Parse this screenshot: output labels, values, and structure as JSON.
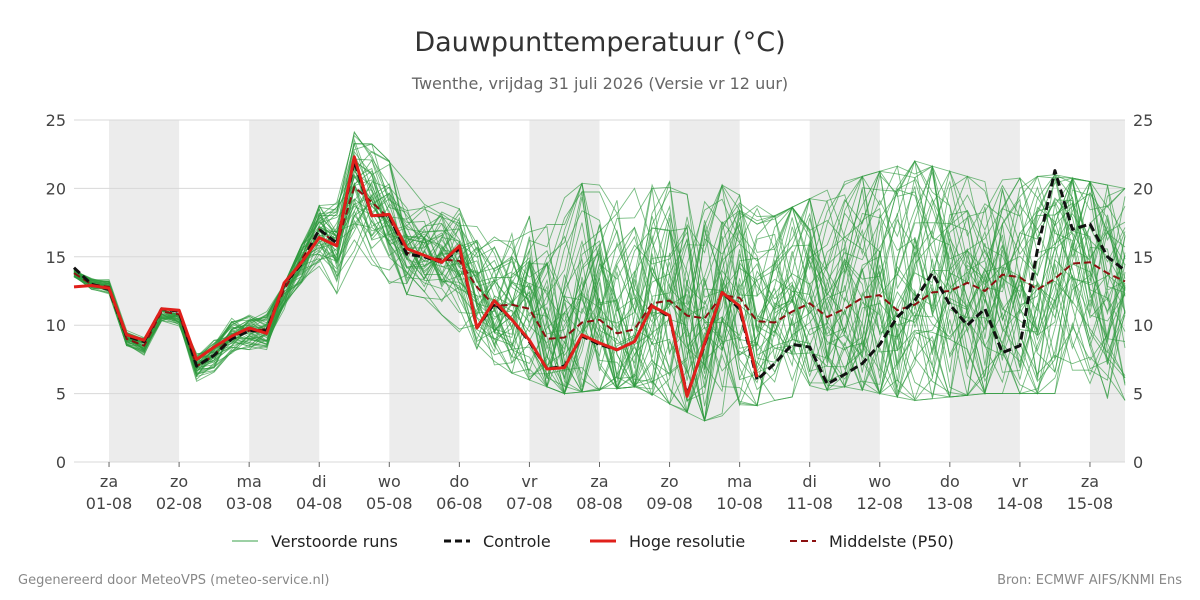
{
  "chart_data": {
    "type": "line",
    "title": "Dauwpunttemperatuur (°C)",
    "subtitle": "Twenthe, vrijdag 31 juli 2026 (Versie vr 12 uur)",
    "ylim": [
      0,
      25
    ],
    "y_ticks": [
      0,
      5,
      10,
      15,
      20,
      25
    ],
    "x_range": [
      "2026-07-31 12:00",
      "2026-08-15 12:00"
    ],
    "date_ticks": [
      {
        "date": "2026-08-01",
        "day": "za",
        "label": "01-08"
      },
      {
        "date": "2026-08-02",
        "day": "zo",
        "label": "02-08"
      },
      {
        "date": "2026-08-03",
        "day": "ma",
        "label": "03-08"
      },
      {
        "date": "2026-08-04",
        "day": "di",
        "label": "04-08"
      },
      {
        "date": "2026-08-05",
        "day": "wo",
        "label": "05-08"
      },
      {
        "date": "2026-08-06",
        "day": "do",
        "label": "06-08"
      },
      {
        "date": "2026-08-07",
        "day": "vr",
        "label": "07-08"
      },
      {
        "date": "2026-08-08",
        "day": "za",
        "label": "08-08"
      },
      {
        "date": "2026-08-09",
        "day": "zo",
        "label": "09-08"
      },
      {
        "date": "2026-08-10",
        "day": "ma",
        "label": "10-08"
      },
      {
        "date": "2026-08-11",
        "day": "di",
        "label": "11-08"
      },
      {
        "date": "2026-08-12",
        "day": "wo",
        "label": "12-08"
      },
      {
        "date": "2026-08-13",
        "day": "do",
        "label": "13-08"
      },
      {
        "date": "2026-08-14",
        "day": "vr",
        "label": "14-08"
      },
      {
        "date": "2026-08-15",
        "day": "za",
        "label": "15-08"
      }
    ],
    "weekend_shading": [
      [
        "2026-08-01",
        "2026-08-02"
      ],
      [
        "2026-08-03",
        "2026-08-04"
      ],
      [
        "2026-08-05",
        "2026-08-06"
      ],
      [
        "2026-08-07",
        "2026-08-08"
      ],
      [
        "2026-08-09",
        "2026-08-10"
      ],
      [
        "2026-08-11",
        "2026-08-12"
      ],
      [
        "2026-08-13",
        "2026-08-14"
      ],
      [
        "2026-08-15",
        "2026-08-15 12:00"
      ]
    ],
    "grid": true,
    "legend_position": "bottom",
    "colors": {
      "ensemble": "#2e9a3e",
      "control": "#111111",
      "hires": "#e0201b",
      "median": "#8b1010",
      "weekend": "#ececec",
      "grid": "#d8d8d8"
    },
    "series": [
      {
        "name": "Controle",
        "style": "dashed",
        "points": [
          [
            "2026-07-31 12:00",
            14.2
          ],
          [
            "2026-07-31 18:00",
            13.0
          ],
          [
            "2026-08-01 00:00",
            12.6
          ],
          [
            "2026-08-01 06:00",
            9.2
          ],
          [
            "2026-08-01 12:00",
            8.8
          ],
          [
            "2026-08-01 18:00",
            11.2
          ],
          [
            "2026-08-02 00:00",
            11.0
          ],
          [
            "2026-08-02 06:00",
            7.0
          ],
          [
            "2026-08-02 12:00",
            7.8
          ],
          [
            "2026-08-02 18:00",
            9.0
          ],
          [
            "2026-08-03 00:00",
            9.6
          ],
          [
            "2026-08-03 06:00",
            9.6
          ],
          [
            "2026-08-03 12:00",
            13.0
          ],
          [
            "2026-08-03 18:00",
            14.5
          ],
          [
            "2026-08-04 00:00",
            17.0
          ],
          [
            "2026-08-04 06:00",
            16.0
          ],
          [
            "2026-08-04 12:00",
            22.0
          ],
          [
            "2026-08-04 18:00",
            18.0
          ],
          [
            "2026-08-05 00:00",
            18.0
          ],
          [
            "2026-08-05 06:00",
            15.2
          ],
          [
            "2026-08-05 12:00",
            15.0
          ],
          [
            "2026-08-05 18:00",
            14.6
          ],
          [
            "2026-08-06 00:00",
            15.6
          ],
          [
            "2026-08-06 06:00",
            9.8
          ],
          [
            "2026-08-06 12:00",
            11.6
          ],
          [
            "2026-08-06 18:00",
            10.4
          ],
          [
            "2026-08-07 00:00",
            8.8
          ],
          [
            "2026-08-07 06:00",
            6.8
          ],
          [
            "2026-08-07 12:00",
            7.0
          ],
          [
            "2026-08-07 18:00",
            9.2
          ],
          [
            "2026-08-08 00:00",
            8.6
          ],
          [
            "2026-08-08 06:00",
            8.2
          ],
          [
            "2026-08-08 12:00",
            8.8
          ],
          [
            "2026-08-08 18:00",
            11.4
          ],
          [
            "2026-08-09 00:00",
            10.6
          ],
          [
            "2026-08-09 06:00",
            4.9
          ],
          [
            "2026-08-09 12:00",
            8.6
          ],
          [
            "2026-08-09 18:00",
            12.4
          ],
          [
            "2026-08-10 00:00",
            11.2
          ],
          [
            "2026-08-10 06:00",
            6.0
          ],
          [
            "2026-08-10 12:00",
            7.2
          ],
          [
            "2026-08-10 18:00",
            8.6
          ],
          [
            "2026-08-11 00:00",
            8.4
          ],
          [
            "2026-08-11 06:00",
            5.7
          ],
          [
            "2026-08-11 12:00",
            6.4
          ],
          [
            "2026-08-11 18:00",
            7.2
          ],
          [
            "2026-08-12 00:00",
            8.6
          ],
          [
            "2026-08-12 06:00",
            10.6
          ],
          [
            "2026-08-12 12:00",
            11.8
          ],
          [
            "2026-08-12 18:00",
            13.8
          ],
          [
            "2026-08-13 00:00",
            11.5
          ],
          [
            "2026-08-13 06:00",
            10.0
          ],
          [
            "2026-08-13 12:00",
            11.2
          ],
          [
            "2026-08-13 18:00",
            8.0
          ],
          [
            "2026-08-14 00:00",
            8.5
          ],
          [
            "2026-08-14 06:00",
            15.5
          ],
          [
            "2026-08-14 12:00",
            21.3
          ],
          [
            "2026-08-14 18:00",
            17.0
          ],
          [
            "2026-08-15 00:00",
            17.4
          ],
          [
            "2026-08-15 06:00",
            15.0
          ],
          [
            "2026-08-15 12:00",
            14.0
          ]
        ]
      },
      {
        "name": "Hoge resolutie",
        "style": "solid",
        "points": [
          [
            "2026-07-31 12:00",
            12.8
          ],
          [
            "2026-07-31 18:00",
            12.9
          ],
          [
            "2026-08-01 00:00",
            12.7
          ],
          [
            "2026-08-01 06:00",
            9.3
          ],
          [
            "2026-08-01 12:00",
            8.9
          ],
          [
            "2026-08-01 18:00",
            11.2
          ],
          [
            "2026-08-02 00:00",
            11.1
          ],
          [
            "2026-08-02 06:00",
            7.5
          ],
          [
            "2026-08-02 12:00",
            8.4
          ],
          [
            "2026-08-02 18:00",
            9.2
          ],
          [
            "2026-08-03 00:00",
            9.8
          ],
          [
            "2026-08-03 06:00",
            9.4
          ],
          [
            "2026-08-03 12:00",
            13.1
          ],
          [
            "2026-08-03 18:00",
            14.6
          ],
          [
            "2026-08-04 00:00",
            16.4
          ],
          [
            "2026-08-04 06:00",
            15.8
          ],
          [
            "2026-08-04 12:00",
            22.3
          ],
          [
            "2026-08-04 18:00",
            18.0
          ],
          [
            "2026-08-05 00:00",
            18.1
          ],
          [
            "2026-08-05 06:00",
            15.6
          ],
          [
            "2026-08-05 12:00",
            15.1
          ],
          [
            "2026-08-05 18:00",
            14.6
          ],
          [
            "2026-08-06 00:00",
            15.8
          ],
          [
            "2026-08-06 06:00",
            9.8
          ],
          [
            "2026-08-06 12:00",
            11.8
          ],
          [
            "2026-08-06 18:00",
            10.4
          ],
          [
            "2026-08-07 00:00",
            8.9
          ],
          [
            "2026-08-07 06:00",
            6.8
          ],
          [
            "2026-08-07 12:00",
            6.9
          ],
          [
            "2026-08-07 18:00",
            9.3
          ],
          [
            "2026-08-08 00:00",
            8.7
          ],
          [
            "2026-08-08 06:00",
            8.2
          ],
          [
            "2026-08-08 12:00",
            8.8
          ],
          [
            "2026-08-08 18:00",
            11.4
          ],
          [
            "2026-08-09 00:00",
            10.7
          ],
          [
            "2026-08-09 06:00",
            4.8
          ],
          [
            "2026-08-09 12:00",
            8.7
          ],
          [
            "2026-08-09 18:00",
            12.4
          ],
          [
            "2026-08-10 00:00",
            11.4
          ],
          [
            "2026-08-10 06:00",
            6.2
          ]
        ]
      },
      {
        "name": "Middelste (P50)",
        "style": "dashed",
        "points": [
          [
            "2026-07-31 12:00",
            13.8
          ],
          [
            "2026-07-31 18:00",
            13.0
          ],
          [
            "2026-08-01 00:00",
            12.8
          ],
          [
            "2026-08-01 06:00",
            9.0
          ],
          [
            "2026-08-01 12:00",
            8.5
          ],
          [
            "2026-08-01 18:00",
            11.0
          ],
          [
            "2026-08-02 00:00",
            10.8
          ],
          [
            "2026-08-02 06:00",
            7.0
          ],
          [
            "2026-08-02 12:00",
            7.8
          ],
          [
            "2026-08-02 18:00",
            9.2
          ],
          [
            "2026-08-03 00:00",
            9.6
          ],
          [
            "2026-08-03 06:00",
            9.7
          ],
          [
            "2026-08-03 12:00",
            12.6
          ],
          [
            "2026-08-03 18:00",
            14.8
          ],
          [
            "2026-08-04 00:00",
            17.0
          ],
          [
            "2026-08-04 06:00",
            15.9
          ],
          [
            "2026-08-04 12:00",
            20.1
          ],
          [
            "2026-08-04 18:00",
            19.0
          ],
          [
            "2026-08-05 00:00",
            17.8
          ],
          [
            "2026-08-05 06:00",
            15.3
          ],
          [
            "2026-08-05 12:00",
            15.0
          ],
          [
            "2026-08-05 18:00",
            14.8
          ],
          [
            "2026-08-06 00:00",
            14.7
          ],
          [
            "2026-08-06 06:00",
            12.8
          ],
          [
            "2026-08-06 12:00",
            11.4
          ],
          [
            "2026-08-06 18:00",
            11.5
          ],
          [
            "2026-08-07 00:00",
            11.2
          ],
          [
            "2026-08-07 06:00",
            9.0
          ],
          [
            "2026-08-07 12:00",
            9.1
          ],
          [
            "2026-08-07 18:00",
            10.2
          ],
          [
            "2026-08-08 00:00",
            10.4
          ],
          [
            "2026-08-08 06:00",
            9.4
          ],
          [
            "2026-08-08 12:00",
            9.7
          ],
          [
            "2026-08-08 18:00",
            11.6
          ],
          [
            "2026-08-09 00:00",
            11.8
          ],
          [
            "2026-08-09 06:00",
            10.7
          ],
          [
            "2026-08-09 12:00",
            10.5
          ],
          [
            "2026-08-09 18:00",
            12.2
          ],
          [
            "2026-08-10 00:00",
            12.0
          ],
          [
            "2026-08-10 06:00",
            10.3
          ],
          [
            "2026-08-10 12:00",
            10.2
          ],
          [
            "2026-08-10 18:00",
            11.0
          ],
          [
            "2026-08-11 00:00",
            11.6
          ],
          [
            "2026-08-11 06:00",
            10.6
          ],
          [
            "2026-08-11 12:00",
            11.2
          ],
          [
            "2026-08-11 18:00",
            12.0
          ],
          [
            "2026-08-12 00:00",
            12.2
          ],
          [
            "2026-08-12 06:00",
            11.1
          ],
          [
            "2026-08-12 12:00",
            11.5
          ],
          [
            "2026-08-12 18:00",
            12.4
          ],
          [
            "2026-08-13 00:00",
            12.5
          ],
          [
            "2026-08-13 06:00",
            13.1
          ],
          [
            "2026-08-13 12:00",
            12.5
          ],
          [
            "2026-08-13 18:00",
            13.7
          ],
          [
            "2026-08-14 00:00",
            13.5
          ],
          [
            "2026-08-14 06:00",
            12.6
          ],
          [
            "2026-08-14 12:00",
            13.4
          ],
          [
            "2026-08-14 18:00",
            14.5
          ],
          [
            "2026-08-15 00:00",
            14.6
          ],
          [
            "2026-08-15 06:00",
            13.8
          ],
          [
            "2026-08-15 12:00",
            13.2
          ]
        ]
      },
      {
        "name": "Verstoorde runs",
        "style": "thin-solid",
        "member_count": 50,
        "approx_envelope": {
          "times": [
            "2026-07-31 12:00",
            "2026-08-01 12:00",
            "2026-08-02 12:00",
            "2026-08-03 12:00",
            "2026-08-04 12:00",
            "2026-08-05 12:00",
            "2026-08-06 12:00",
            "2026-08-07 12:00",
            "2026-08-08 12:00",
            "2026-08-09 12:00",
            "2026-08-10 12:00",
            "2026-08-11 12:00",
            "2026-08-12 12:00",
            "2026-08-13 12:00",
            "2026-08-14 12:00",
            "2026-08-15 12:00"
          ],
          "low": [
            11.5,
            7.5,
            5.0,
            8.5,
            13.0,
            12.0,
            7.0,
            5.0,
            5.5,
            3.0,
            4.5,
            5.5,
            4.5,
            5.0,
            5.0,
            4.5
          ],
          "high": [
            15.5,
            11.5,
            10.0,
            13.0,
            24.5,
            19.5,
            17.5,
            20.5,
            20.0,
            21.0,
            18.0,
            20.5,
            22.0,
            20.5,
            21.0,
            20.0
          ]
        }
      }
    ]
  },
  "legend": {
    "ensemble": "Verstoorde runs",
    "control": "Controle",
    "hires": "Hoge resolutie",
    "median": "Middelste (P50)"
  },
  "footer": {
    "left": "Gegenereerd door MeteoVPS (meteo-service.nl)",
    "right": "Bron: ECMWF AIFS/KNMI Ens"
  }
}
